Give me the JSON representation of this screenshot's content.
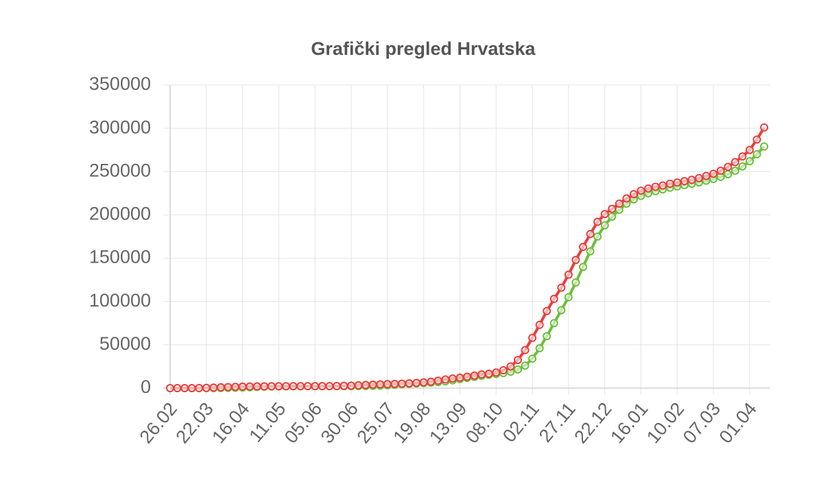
{
  "chart_data": {
    "type": "line",
    "title": "Grafički pregled Hrvatska",
    "categories": [
      "26.02",
      null,
      null,
      null,
      null,
      "22.03",
      null,
      null,
      null,
      null,
      "16.04",
      null,
      null,
      null,
      null,
      "11.05",
      null,
      null,
      null,
      null,
      "05.06",
      null,
      null,
      null,
      null,
      "30.06",
      null,
      null,
      null,
      null,
      "25.07",
      null,
      null,
      null,
      null,
      "19.08",
      null,
      null,
      null,
      null,
      "13.09",
      null,
      null,
      null,
      null,
      "08.10",
      null,
      null,
      null,
      null,
      "02.11",
      null,
      null,
      null,
      null,
      "27.11",
      null,
      null,
      null,
      null,
      "22.12",
      null,
      null,
      null,
      null,
      "16.01",
      null,
      null,
      null,
      null,
      "10.02",
      null,
      null,
      null,
      null,
      "07.03",
      null,
      null,
      null,
      null,
      "01.04",
      null,
      null
    ],
    "series": [
      {
        "color": "#6cbf3a",
        "values": [
          0,
          0,
          0,
          1,
          5,
          20,
          40,
          80,
          200,
          400,
          700,
          1000,
          1300,
          1600,
          1800,
          1950,
          2000,
          2050,
          2100,
          2130,
          2150,
          2160,
          2170,
          2180,
          2190,
          2220,
          2300,
          2400,
          2600,
          2900,
          3300,
          3800,
          4300,
          4800,
          5300,
          5800,
          6300,
          6900,
          7800,
          9000,
          10500,
          11800,
          13000,
          14200,
          15300,
          16300,
          17400,
          19000,
          21500,
          26000,
          34000,
          46000,
          60000,
          75000,
          90000,
          105000,
          122000,
          140000,
          158000,
          175000,
          188000,
          198000,
          206000,
          213000,
          218000,
          222000,
          225000,
          227500,
          229500,
          231500,
          233000,
          234500,
          236000,
          237500,
          239500,
          241500,
          244000,
          247000,
          251000,
          256000,
          262000,
          270000,
          279000
        ]
      },
      {
        "color": "#e83e3e",
        "values": [
          1,
          7,
          12,
          32,
          65,
          254,
          586,
          963,
          1222,
          1534,
          1741,
          1908,
          2030,
          2085,
          2146,
          2196,
          2224,
          2236,
          2244,
          2246,
          2250,
          2254,
          2280,
          2366,
          2650,
          2831,
          3220,
          3672,
          4039,
          4370,
          4634,
          4880,
          5143,
          5582,
          6068,
          6672,
          7450,
          8600,
          10000,
          11100,
          12100,
          13200,
          14500,
          15800,
          16600,
          18000,
          20600,
          25000,
          32500,
          43800,
          58000,
          73000,
          89000,
          103000,
          116000,
          131000,
          148000,
          163000,
          178000,
          192000,
          201000,
          207000,
          213000,
          219000,
          224000,
          228000,
          230500,
          232500,
          234000,
          236000,
          237500,
          239000,
          240500,
          242500,
          245000,
          247500,
          251000,
          255500,
          261000,
          267500,
          275000,
          287000,
          301000
        ]
      }
    ],
    "ylim": [
      0,
      350000
    ],
    "yticks": [
      0,
      50000,
      100000,
      150000,
      200000,
      250000,
      300000,
      350000
    ],
    "grid": true
  }
}
